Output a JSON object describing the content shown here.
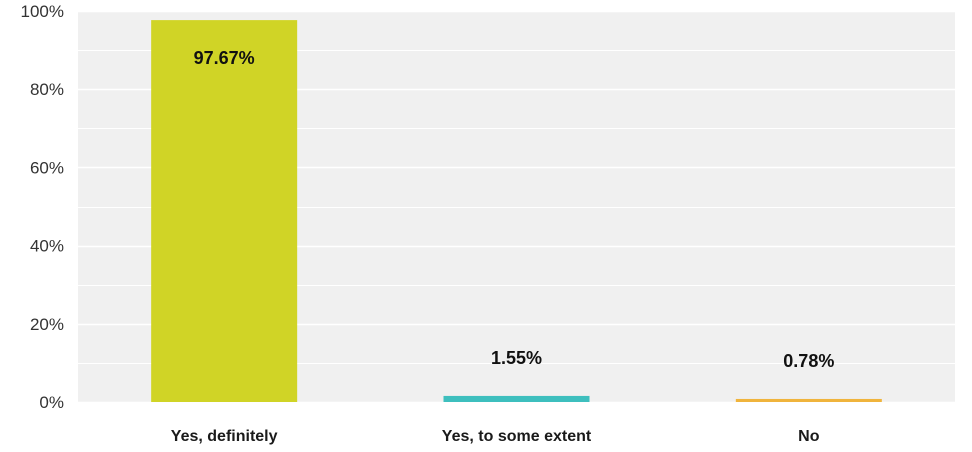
{
  "chart_data": {
    "type": "bar",
    "categories": [
      "Yes, definitely",
      "Yes, to some extent",
      "No"
    ],
    "values": [
      97.67,
      1.55,
      0.78
    ],
    "data_labels": [
      "97.67%",
      "1.55%",
      "0.78%"
    ],
    "ylim": [
      0,
      100
    ],
    "y_ticks": [
      0,
      20,
      40,
      60,
      80,
      100
    ],
    "y_tick_labels": [
      "0%",
      "20%",
      "40%",
      "60%",
      "80%",
      "100%"
    ],
    "grid": true,
    "minor_grid": true,
    "legend": "none",
    "colors": [
      "#d0d426",
      "#3ebfbe",
      "#f0b43c"
    ],
    "plot_background": "#f0f0f0",
    "grid_color": "#ffffff"
  }
}
